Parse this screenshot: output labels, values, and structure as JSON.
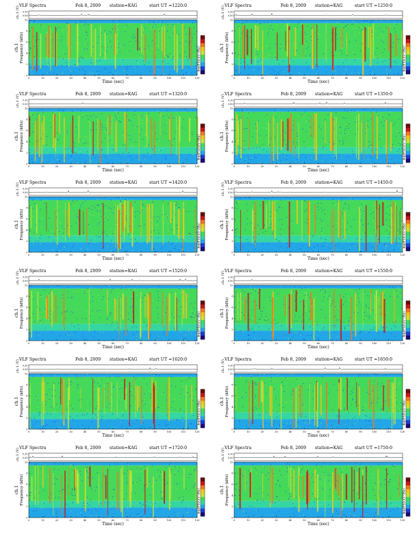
{
  "header": {
    "title": "VLF Spectra",
    "date": "Feb 8, 2009",
    "station": "station=KAG"
  },
  "colors": {
    "scale_stops": [
      "#1a0a7a",
      "#1f3fd6",
      "#22a6e8",
      "#34d6a2",
      "#45d95a",
      "#c8e23a",
      "#f2c619",
      "#f0781c",
      "#c81818",
      "#6e0a0a"
    ]
  },
  "chart_data": [
    {
      "type": "heatmap",
      "panel": 1,
      "start_label": "start  UT =1220:0",
      "xlabel": "Time  (sec)",
      "ylabel": "Frequency  (kHz)",
      "channel_label": "ch.1",
      "wave_label": "ch.1 (V)",
      "wave_ticks": [
        "0.00",
        "0.30"
      ],
      "colorbar_label": "log(PSD)(V²/Hz)",
      "xlim": [
        0,
        120
      ],
      "ylim": [
        0,
        10
      ],
      "xticks": [
        0,
        10,
        20,
        30,
        40,
        50,
        60,
        70,
        80,
        90,
        100,
        110,
        120
      ],
      "yticks": [
        0,
        2,
        4,
        6,
        8,
        10
      ]
    },
    {
      "type": "heatmap",
      "panel": 2,
      "start_label": "start  UT =1250:0",
      "xlabel": "Time  (sec)",
      "ylabel": "Frequency  (kHz)",
      "channel_label": "ch.1",
      "wave_label": "ch.1 (V)",
      "wave_ticks": [
        "0.00",
        "0.30"
      ],
      "colorbar_label": "log(PSD)(V²/Hz)",
      "xlim": [
        0,
        120
      ],
      "ylim": [
        0,
        10
      ],
      "xticks": [
        0,
        10,
        20,
        30,
        40,
        50,
        60,
        70,
        80,
        90,
        100,
        110,
        120
      ],
      "yticks": [
        0,
        2,
        4,
        6,
        8,
        10
      ]
    },
    {
      "type": "heatmap",
      "panel": 3,
      "start_label": "start  UT =1320:0",
      "xlabel": "Time  (sec)",
      "ylabel": "Frequency  (kHz)",
      "channel_label": "ch.1",
      "wave_label": "ch.1 (V)",
      "wave_ticks": [
        "0.00",
        "0.30"
      ],
      "colorbar_label": "log(PSD)(V²/Hz)",
      "xlim": [
        0,
        120
      ],
      "ylim": [
        0,
        10
      ],
      "xticks": [
        0,
        10,
        20,
        30,
        40,
        50,
        60,
        70,
        80,
        90,
        100,
        110,
        120
      ],
      "yticks": [
        0,
        2,
        4,
        6,
        8,
        10
      ]
    },
    {
      "type": "heatmap",
      "panel": 4,
      "start_label": "start  UT =1350:0",
      "xlabel": "Time  (sec)",
      "ylabel": "Frequency  (kHz)",
      "channel_label": "ch.1",
      "wave_label": "ch.1 (V)",
      "wave_ticks": [
        "0.00",
        "0.30"
      ],
      "colorbar_label": "log(PSD)(V²/Hz)",
      "xlim": [
        0,
        120
      ],
      "ylim": [
        0,
        10
      ],
      "xticks": [
        0,
        10,
        20,
        30,
        40,
        50,
        60,
        70,
        80,
        90,
        100,
        110,
        120
      ],
      "yticks": [
        0,
        2,
        4,
        6,
        8,
        10
      ]
    },
    {
      "type": "heatmap",
      "panel": 5,
      "start_label": "start  UT =1420:0",
      "xlabel": "Time  (sec)",
      "ylabel": "Frequency  (kHz)",
      "channel_label": "ch.1",
      "wave_label": "ch.1 (V)",
      "wave_ticks": [
        "0.00",
        "0.30"
      ],
      "colorbar_label": "log(PSD)(V²/Hz)",
      "xlim": [
        0,
        120
      ],
      "ylim": [
        0,
        10
      ],
      "xticks": [
        0,
        10,
        20,
        30,
        40,
        50,
        60,
        70,
        80,
        90,
        100,
        110,
        120
      ],
      "yticks": [
        0,
        2,
        4,
        6,
        8,
        10
      ]
    },
    {
      "type": "heatmap",
      "panel": 6,
      "start_label": "start  UT =1450:0",
      "xlabel": "Time  (sec)",
      "ylabel": "Frequency  (kHz)",
      "channel_label": "ch.1",
      "wave_label": "ch.1 (V)",
      "wave_ticks": [
        "0.00",
        "0.30"
      ],
      "colorbar_label": "log(PSD)(V²/Hz)",
      "xlim": [
        0,
        120
      ],
      "ylim": [
        0,
        10
      ],
      "xticks": [
        0,
        10,
        20,
        30,
        40,
        50,
        60,
        70,
        80,
        90,
        100,
        110,
        120
      ],
      "yticks": [
        0,
        2,
        4,
        6,
        8,
        10
      ]
    },
    {
      "type": "heatmap",
      "panel": 7,
      "start_label": "start  UT =1520:0",
      "xlabel": "Time  (sec)",
      "ylabel": "Frequency  (kHz)",
      "channel_label": "ch.1",
      "wave_label": "ch.1 (V)",
      "wave_ticks": [
        "0.00",
        "0.30"
      ],
      "colorbar_label": "log(PSD)(V²/Hz)",
      "xlim": [
        0,
        120
      ],
      "ylim": [
        0,
        10
      ],
      "xticks": [
        0,
        10,
        20,
        30,
        40,
        50,
        60,
        70,
        80,
        90,
        100,
        110,
        120
      ],
      "yticks": [
        0,
        2,
        4,
        6,
        8,
        10
      ]
    },
    {
      "type": "heatmap",
      "panel": 8,
      "start_label": "start  UT =1550:0",
      "xlabel": "Time  (sec)",
      "ylabel": "Frequency  (kHz)",
      "channel_label": "ch.1",
      "wave_label": "ch.1 (V)",
      "wave_ticks": [
        "0.00",
        "0.30"
      ],
      "colorbar_label": "log(PSD)(V²/Hz)",
      "xlim": [
        0,
        120
      ],
      "ylim": [
        0,
        10
      ],
      "xticks": [
        0,
        10,
        20,
        30,
        40,
        50,
        60,
        70,
        80,
        90,
        100,
        110,
        120
      ],
      "yticks": [
        0,
        2,
        4,
        6,
        8,
        10
      ]
    },
    {
      "type": "heatmap",
      "panel": 9,
      "start_label": "start  UT =1620:0",
      "xlabel": "Time  (sec)",
      "ylabel": "Frequency  (kHz)",
      "channel_label": "ch.1",
      "wave_label": "ch.1 (V)",
      "wave_ticks": [
        "0.00",
        "0.30"
      ],
      "colorbar_label": "log(PSD)(V²/Hz)",
      "xlim": [
        0,
        120
      ],
      "ylim": [
        0,
        10
      ],
      "xticks": [
        0,
        10,
        20,
        30,
        40,
        50,
        60,
        70,
        80,
        90,
        100,
        110,
        120
      ],
      "yticks": [
        0,
        2,
        4,
        6,
        8,
        10
      ]
    },
    {
      "type": "heatmap",
      "panel": 10,
      "start_label": "start  UT =1650:0",
      "xlabel": "Time  (sec)",
      "ylabel": "Frequency  (kHz)",
      "channel_label": "ch.1",
      "wave_label": "ch.1 (V)",
      "wave_ticks": [
        "0.00",
        "0.30"
      ],
      "colorbar_label": "log(PSD)(V²/Hz)",
      "xlim": [
        0,
        120
      ],
      "ylim": [
        0,
        10
      ],
      "xticks": [
        0,
        10,
        20,
        30,
        40,
        50,
        60,
        70,
        80,
        90,
        100,
        110,
        120
      ],
      "yticks": [
        0,
        2,
        4,
        6,
        8,
        10
      ]
    },
    {
      "type": "heatmap",
      "panel": 11,
      "start_label": "start  UT =1720:0",
      "xlabel": "Time  (sec)",
      "ylabel": "Frequency  (kHz)",
      "channel_label": "ch.1",
      "wave_label": "ch.1 (V)",
      "wave_ticks": [
        "0.00",
        "0.30"
      ],
      "colorbar_label": "log(PSD)(V²/Hz)",
      "xlim": [
        0,
        120
      ],
      "ylim": [
        0,
        10
      ],
      "xticks": [
        0,
        10,
        20,
        30,
        40,
        50,
        60,
        70,
        80,
        90,
        100,
        110,
        120
      ],
      "yticks": [
        0,
        2,
        4,
        6,
        8,
        10
      ]
    },
    {
      "type": "heatmap",
      "panel": 12,
      "start_label": "start  UT =1750:0",
      "xlabel": "Time  (sec)",
      "ylabel": "Frequency  (kHz)",
      "channel_label": "ch.1",
      "wave_label": "ch.1 (V)",
      "wave_ticks": [
        "0.00",
        "0.30"
      ],
      "colorbar_label": "log(PSD)(V²/Hz)",
      "xlim": [
        0,
        120
      ],
      "ylim": [
        0,
        10
      ],
      "xticks": [
        0,
        10,
        20,
        30,
        40,
        50,
        60,
        70,
        80,
        90,
        100,
        110,
        120
      ],
      "yticks": [
        0,
        2,
        4,
        6,
        8,
        10
      ]
    }
  ]
}
